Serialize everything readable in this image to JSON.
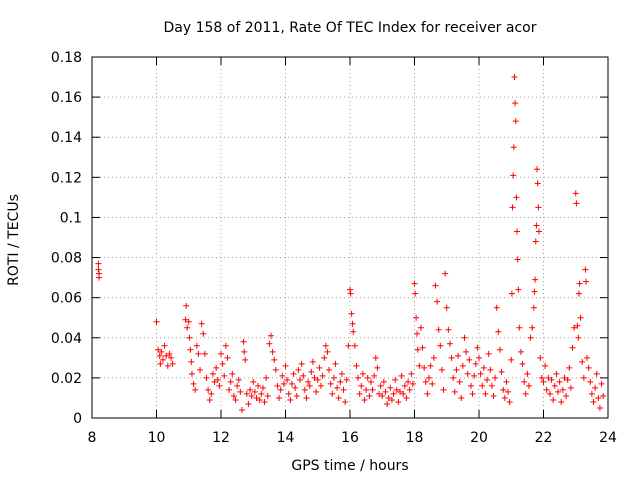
{
  "chart_data": {
    "type": "scatter",
    "title": "Day 158 of 2011, Rate Of TEC Index for receiver acor",
    "xlabel": "GPS time / hours",
    "ylabel": "ROTI / TECUs",
    "xlim": [
      8,
      24
    ],
    "ylim": [
      0,
      0.18
    ],
    "x_ticks": [
      "8",
      "10",
      "12",
      "14",
      "16",
      "18",
      "20",
      "22",
      "24"
    ],
    "y_ticks": [
      "0",
      "0.02",
      "0.04",
      "0.06",
      "0.08",
      "0.1",
      "0.12",
      "0.14",
      "0.16",
      "0.18"
    ],
    "x_tick_values": [
      8,
      10,
      12,
      14,
      16,
      18,
      20,
      22,
      24
    ],
    "y_tick_values": [
      0,
      0.02,
      0.04,
      0.06,
      0.08,
      0.1,
      0.12,
      0.14,
      0.16,
      0.18
    ],
    "grid": true,
    "marker": "+",
    "color": "#ff0000",
    "series": [
      {
        "name": "ROTI",
        "points": [
          [
            8.2,
            0.077
          ],
          [
            8.2,
            0.074
          ],
          [
            8.22,
            0.072
          ],
          [
            8.22,
            0.07
          ],
          [
            10.0,
            0.048
          ],
          [
            10.05,
            0.034
          ],
          [
            10.1,
            0.031
          ],
          [
            10.12,
            0.027
          ],
          [
            10.15,
            0.033
          ],
          [
            10.2,
            0.029
          ],
          [
            10.25,
            0.036
          ],
          [
            10.3,
            0.031
          ],
          [
            10.35,
            0.026
          ],
          [
            10.4,
            0.032
          ],
          [
            10.45,
            0.03
          ],
          [
            10.5,
            0.027
          ],
          [
            10.9,
            0.049
          ],
          [
            10.92,
            0.056
          ],
          [
            10.95,
            0.045
          ],
          [
            11.0,
            0.048
          ],
          [
            11.02,
            0.04
          ],
          [
            11.05,
            0.034
          ],
          [
            11.08,
            0.028
          ],
          [
            11.1,
            0.022
          ],
          [
            11.15,
            0.017
          ],
          [
            11.2,
            0.014
          ],
          [
            11.25,
            0.036
          ],
          [
            11.3,
            0.032
          ],
          [
            11.35,
            0.024
          ],
          [
            11.4,
            0.047
          ],
          [
            11.45,
            0.042
          ],
          [
            11.5,
            0.032
          ],
          [
            11.55,
            0.02
          ],
          [
            11.6,
            0.014
          ],
          [
            11.65,
            0.009
          ],
          [
            11.7,
            0.012
          ],
          [
            11.75,
            0.022
          ],
          [
            11.8,
            0.018
          ],
          [
            11.85,
            0.025
          ],
          [
            11.9,
            0.019
          ],
          [
            11.95,
            0.016
          ],
          [
            12.0,
            0.032
          ],
          [
            12.05,
            0.027
          ],
          [
            12.1,
            0.021
          ],
          [
            12.15,
            0.036
          ],
          [
            12.2,
            0.03
          ],
          [
            12.25,
            0.014
          ],
          [
            12.3,
            0.018
          ],
          [
            12.35,
            0.022
          ],
          [
            12.4,
            0.011
          ],
          [
            12.45,
            0.009
          ],
          [
            12.5,
            0.016
          ],
          [
            12.55,
            0.019
          ],
          [
            12.6,
            0.013
          ],
          [
            12.65,
            0.004
          ],
          [
            12.7,
            0.038
          ],
          [
            12.72,
            0.033
          ],
          [
            12.75,
            0.029
          ],
          [
            12.8,
            0.012
          ],
          [
            12.85,
            0.007
          ],
          [
            12.9,
            0.014
          ],
          [
            12.95,
            0.011
          ],
          [
            13.0,
            0.018
          ],
          [
            13.05,
            0.013
          ],
          [
            13.1,
            0.01
          ],
          [
            13.15,
            0.016
          ],
          [
            13.2,
            0.009
          ],
          [
            13.25,
            0.012
          ],
          [
            13.3,
            0.015
          ],
          [
            13.35,
            0.008
          ],
          [
            13.4,
            0.02
          ],
          [
            13.45,
            0.011
          ],
          [
            13.5,
            0.037
          ],
          [
            13.55,
            0.041
          ],
          [
            13.6,
            0.033
          ],
          [
            13.65,
            0.029
          ],
          [
            13.7,
            0.024
          ],
          [
            13.75,
            0.016
          ],
          [
            13.8,
            0.01
          ],
          [
            13.85,
            0.014
          ],
          [
            13.9,
            0.021
          ],
          [
            13.95,
            0.017
          ],
          [
            14.0,
            0.026
          ],
          [
            14.05,
            0.019
          ],
          [
            14.1,
            0.012
          ],
          [
            14.15,
            0.009
          ],
          [
            14.2,
            0.017
          ],
          [
            14.25,
            0.022
          ],
          [
            14.3,
            0.015
          ],
          [
            14.35,
            0.011
          ],
          [
            14.4,
            0.024
          ],
          [
            14.45,
            0.019
          ],
          [
            14.5,
            0.027
          ],
          [
            14.55,
            0.021
          ],
          [
            14.6,
            0.014
          ],
          [
            14.65,
            0.01
          ],
          [
            14.7,
            0.018
          ],
          [
            14.75,
            0.016
          ],
          [
            14.8,
            0.023
          ],
          [
            14.85,
            0.028
          ],
          [
            14.9,
            0.02
          ],
          [
            14.95,
            0.013
          ],
          [
            15.0,
            0.019
          ],
          [
            15.05,
            0.025
          ],
          [
            15.1,
            0.016
          ],
          [
            15.15,
            0.021
          ],
          [
            15.2,
            0.03
          ],
          [
            15.25,
            0.036
          ],
          [
            15.3,
            0.033
          ],
          [
            15.35,
            0.024
          ],
          [
            15.4,
            0.017
          ],
          [
            15.45,
            0.012
          ],
          [
            15.5,
            0.02
          ],
          [
            15.55,
            0.027
          ],
          [
            15.6,
            0.015
          ],
          [
            15.65,
            0.01
          ],
          [
            15.7,
            0.018
          ],
          [
            15.75,
            0.022
          ],
          [
            15.8,
            0.014
          ],
          [
            15.85,
            0.008
          ],
          [
            15.9,
            0.019
          ],
          [
            15.95,
            0.036
          ],
          [
            16.0,
            0.064
          ],
          [
            16.02,
            0.062
          ],
          [
            16.05,
            0.052
          ],
          [
            16.08,
            0.047
          ],
          [
            16.1,
            0.043
          ],
          [
            16.15,
            0.036
          ],
          [
            16.2,
            0.026
          ],
          [
            16.25,
            0.02
          ],
          [
            16.3,
            0.012
          ],
          [
            16.35,
            0.016
          ],
          [
            16.4,
            0.022
          ],
          [
            16.45,
            0.009
          ],
          [
            16.5,
            0.014
          ],
          [
            16.55,
            0.02
          ],
          [
            16.6,
            0.011
          ],
          [
            16.65,
            0.018
          ],
          [
            16.7,
            0.014
          ],
          [
            16.75,
            0.021
          ],
          [
            16.8,
            0.03
          ],
          [
            16.85,
            0.025
          ],
          [
            16.9,
            0.012
          ],
          [
            16.95,
            0.016
          ],
          [
            17.0,
            0.011
          ],
          [
            17.05,
            0.018
          ],
          [
            17.1,
            0.013
          ],
          [
            17.15,
            0.007
          ],
          [
            17.2,
            0.01
          ],
          [
            17.25,
            0.015
          ],
          [
            17.3,
            0.009
          ],
          [
            17.35,
            0.012
          ],
          [
            17.4,
            0.019
          ],
          [
            17.45,
            0.014
          ],
          [
            17.5,
            0.008
          ],
          [
            17.55,
            0.013
          ],
          [
            17.6,
            0.021
          ],
          [
            17.65,
            0.012
          ],
          [
            17.7,
            0.016
          ],
          [
            17.75,
            0.01
          ],
          [
            17.8,
            0.018
          ],
          [
            17.85,
            0.014
          ],
          [
            17.9,
            0.022
          ],
          [
            17.95,
            0.017
          ],
          [
            18.0,
            0.067
          ],
          [
            18.02,
            0.062
          ],
          [
            18.05,
            0.05
          ],
          [
            18.08,
            0.042
          ],
          [
            18.1,
            0.034
          ],
          [
            18.15,
            0.026
          ],
          [
            18.2,
            0.045
          ],
          [
            18.25,
            0.035
          ],
          [
            18.3,
            0.025
          ],
          [
            18.35,
            0.018
          ],
          [
            18.4,
            0.012
          ],
          [
            18.45,
            0.02
          ],
          [
            18.5,
            0.026
          ],
          [
            18.55,
            0.017
          ],
          [
            18.6,
            0.03
          ],
          [
            18.65,
            0.066
          ],
          [
            18.7,
            0.058
          ],
          [
            18.75,
            0.044
          ],
          [
            18.8,
            0.036
          ],
          [
            18.85,
            0.024
          ],
          [
            18.9,
            0.014
          ],
          [
            18.95,
            0.072
          ],
          [
            19.0,
            0.055
          ],
          [
            19.05,
            0.044
          ],
          [
            19.1,
            0.037
          ],
          [
            19.15,
            0.03
          ],
          [
            19.2,
            0.02
          ],
          [
            19.25,
            0.013
          ],
          [
            19.3,
            0.024
          ],
          [
            19.35,
            0.031
          ],
          [
            19.4,
            0.018
          ],
          [
            19.45,
            0.01
          ],
          [
            19.5,
            0.026
          ],
          [
            19.55,
            0.04
          ],
          [
            19.6,
            0.033
          ],
          [
            19.65,
            0.022
          ],
          [
            19.7,
            0.029
          ],
          [
            19.75,
            0.016
          ],
          [
            19.8,
            0.012
          ],
          [
            19.85,
            0.021
          ],
          [
            19.9,
            0.027
          ],
          [
            19.95,
            0.035
          ],
          [
            20.0,
            0.03
          ],
          [
            20.05,
            0.022
          ],
          [
            20.1,
            0.016
          ],
          [
            20.15,
            0.025
          ],
          [
            20.2,
            0.012
          ],
          [
            20.25,
            0.019
          ],
          [
            20.3,
            0.032
          ],
          [
            20.35,
            0.024
          ],
          [
            20.4,
            0.016
          ],
          [
            20.45,
            0.011
          ],
          [
            20.5,
            0.02
          ],
          [
            20.55,
            0.055
          ],
          [
            20.6,
            0.043
          ],
          [
            20.65,
            0.034
          ],
          [
            20.7,
            0.023
          ],
          [
            20.75,
            0.014
          ],
          [
            20.8,
            0.01
          ],
          [
            20.85,
            0.018
          ],
          [
            20.9,
            0.013
          ],
          [
            20.95,
            0.008
          ],
          [
            21.0,
            0.029
          ],
          [
            21.02,
            0.062
          ],
          [
            21.04,
            0.105
          ],
          [
            21.06,
            0.121
          ],
          [
            21.08,
            0.135
          ],
          [
            21.1,
            0.17
          ],
          [
            21.12,
            0.157
          ],
          [
            21.14,
            0.148
          ],
          [
            21.16,
            0.11
          ],
          [
            21.18,
            0.093
          ],
          [
            21.2,
            0.079
          ],
          [
            21.22,
            0.064
          ],
          [
            21.25,
            0.045
          ],
          [
            21.3,
            0.033
          ],
          [
            21.35,
            0.027
          ],
          [
            21.4,
            0.018
          ],
          [
            21.45,
            0.012
          ],
          [
            21.5,
            0.022
          ],
          [
            21.55,
            0.016
          ],
          [
            21.6,
            0.04
          ],
          [
            21.65,
            0.045
          ],
          [
            21.7,
            0.055
          ],
          [
            21.72,
            0.063
          ],
          [
            21.74,
            0.069
          ],
          [
            21.76,
            0.088
          ],
          [
            21.78,
            0.096
          ],
          [
            21.8,
            0.124
          ],
          [
            21.82,
            0.117
          ],
          [
            21.84,
            0.105
          ],
          [
            21.86,
            0.093
          ],
          [
            21.9,
            0.03
          ],
          [
            21.95,
            0.02
          ],
          [
            22.0,
            0.018
          ],
          [
            22.05,
            0.026
          ],
          [
            22.1,
            0.014
          ],
          [
            22.15,
            0.02
          ],
          [
            22.2,
            0.012
          ],
          [
            22.25,
            0.019
          ],
          [
            22.3,
            0.009
          ],
          [
            22.35,
            0.016
          ],
          [
            22.4,
            0.022
          ],
          [
            22.45,
            0.013
          ],
          [
            22.5,
            0.018
          ],
          [
            22.55,
            0.008
          ],
          [
            22.6,
            0.014
          ],
          [
            22.65,
            0.02
          ],
          [
            22.7,
            0.011
          ],
          [
            22.75,
            0.019
          ],
          [
            22.8,
            0.025
          ],
          [
            22.85,
            0.015
          ],
          [
            22.9,
            0.035
          ],
          [
            22.95,
            0.045
          ],
          [
            23.0,
            0.112
          ],
          [
            23.02,
            0.107
          ],
          [
            23.05,
            0.046
          ],
          [
            23.08,
            0.04
          ],
          [
            23.1,
            0.062
          ],
          [
            23.12,
            0.067
          ],
          [
            23.15,
            0.05
          ],
          [
            23.2,
            0.028
          ],
          [
            23.25,
            0.02
          ],
          [
            23.3,
            0.074
          ],
          [
            23.32,
            0.068
          ],
          [
            23.35,
            0.03
          ],
          [
            23.4,
            0.025
          ],
          [
            23.45,
            0.018
          ],
          [
            23.5,
            0.012
          ],
          [
            23.55,
            0.008
          ],
          [
            23.6,
            0.015
          ],
          [
            23.65,
            0.022
          ],
          [
            23.7,
            0.01
          ],
          [
            23.75,
            0.005
          ],
          [
            23.8,
            0.017
          ],
          [
            23.85,
            0.011
          ]
        ]
      }
    ]
  }
}
